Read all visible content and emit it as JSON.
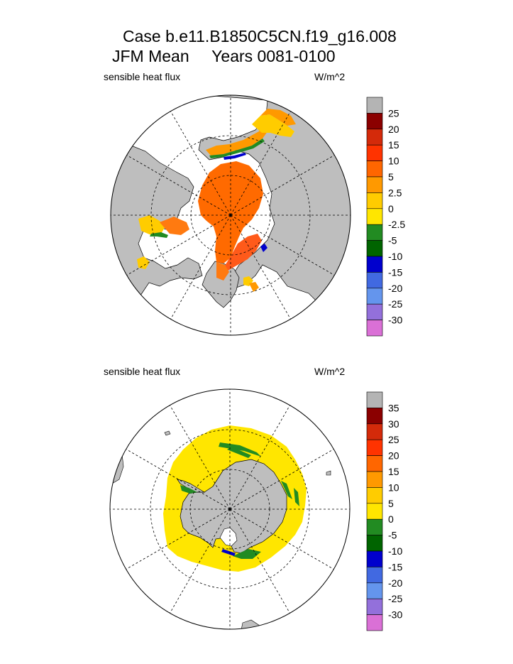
{
  "title": {
    "line1": "Case b.e11.B1850C5CN.f19_g16.008",
    "line2": "JFM Mean     Years 0081-0100"
  },
  "panels": [
    {
      "field_label": "sensible heat flux",
      "units_label": "W/m^2"
    },
    {
      "field_label": "sensible heat flux",
      "units_label": "W/m^2"
    }
  ],
  "colors": {
    "land": "#bebebe",
    "ocean_no_data": "#ffffff",
    "grid": "#000000"
  },
  "chart_data": [
    {
      "type": "heatmap",
      "projection": "north-polar-stereographic",
      "title": "sensible heat flux",
      "units": "W/m^2",
      "colorbar": {
        "levels": [
          "25",
          "20",
          "15",
          "10",
          "5",
          "2.5",
          "0",
          "-2.5",
          "-5",
          "-10",
          "-15",
          "-20",
          "-25",
          "-30"
        ],
        "colors": [
          "#b4b4b4",
          "#8b0000",
          "#d42a0a",
          "#ff3300",
          "#ff6600",
          "#ff9900",
          "#ffcc00",
          "#ffe600",
          "#228b22",
          "#006400",
          "#0000cd",
          "#4169e1",
          "#6495ed",
          "#9370db",
          "#da70d6"
        ]
      }
    },
    {
      "type": "heatmap",
      "projection": "south-polar-stereographic",
      "title": "sensible heat flux",
      "units": "W/m^2",
      "colorbar": {
        "levels": [
          "35",
          "30",
          "25",
          "20",
          "15",
          "10",
          "5",
          "0",
          "-5",
          "-10",
          "-15",
          "-20",
          "-25",
          "-30"
        ],
        "colors": [
          "#b4b4b4",
          "#8b0000",
          "#d42a0a",
          "#ff3300",
          "#ff6600",
          "#ff9900",
          "#ffcc00",
          "#ffe600",
          "#228b22",
          "#006400",
          "#0000cd",
          "#4169e1",
          "#6495ed",
          "#9370db",
          "#da70d6"
        ]
      }
    }
  ]
}
